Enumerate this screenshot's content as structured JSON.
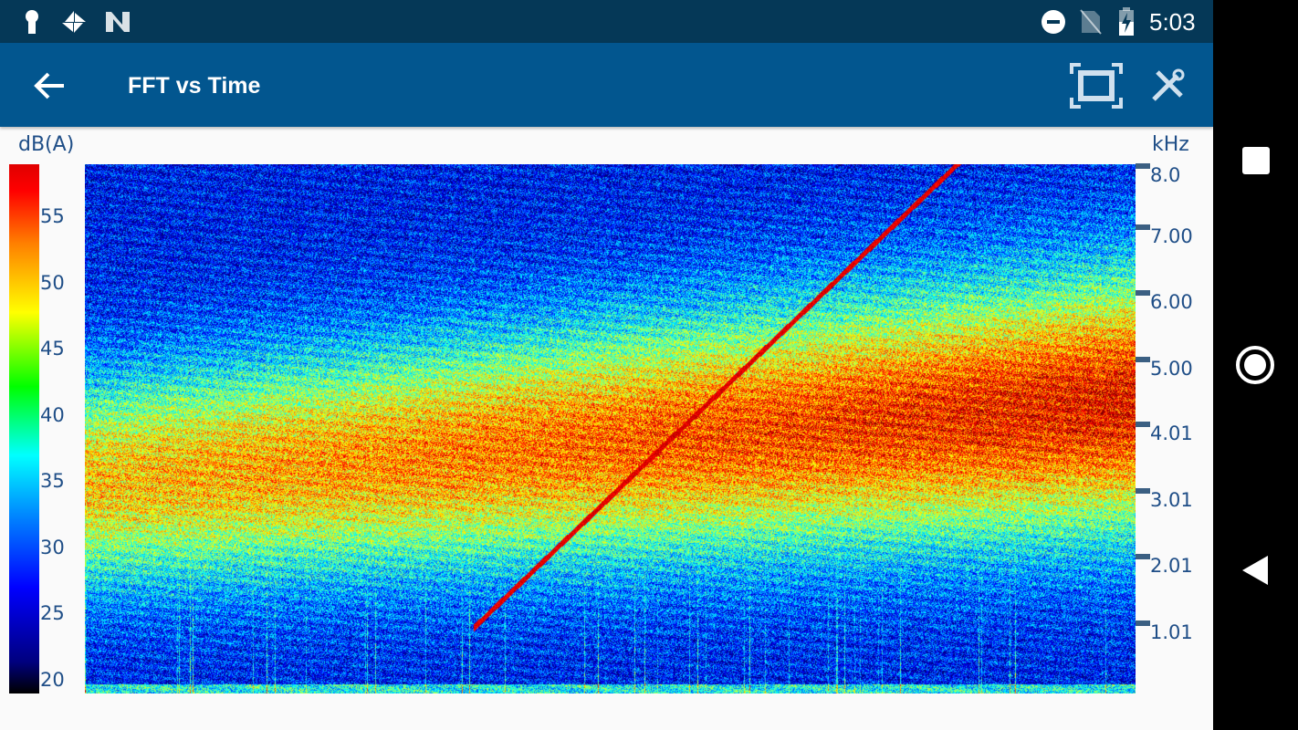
{
  "status_bar": {
    "time": "5:03",
    "icons": [
      "keyhole-icon",
      "pinwheel-icon",
      "n-icon",
      "do-not-disturb-icon",
      "no-sim-icon",
      "battery-charging-icon"
    ]
  },
  "app_bar": {
    "title": "FFT vs Time",
    "back_icon": "arrow-left-icon",
    "fullscreen_icon": "fullscreen-icon",
    "settings_icon": "tools-icon"
  },
  "nav_bar": {
    "icons": [
      "recents-square-icon",
      "home-circle-icon",
      "back-triangle-icon"
    ]
  },
  "chart_data": {
    "type": "heatmap",
    "title": "",
    "colorbar": {
      "label": "dB(A)",
      "ticks": [
        "20",
        "25",
        "30",
        "35",
        "40",
        "45",
        "50",
        "55"
      ],
      "range": [
        19,
        59
      ],
      "colormap": "jet"
    },
    "y_axis": {
      "label": "kHz",
      "ticks": [
        "8.0",
        "7.00",
        "6.00",
        "5.00",
        "4.01",
        "3.01",
        "2.01",
        "1.01"
      ],
      "tick_values": [
        8.0,
        7.0,
        6.0,
        5.0,
        4.01,
        3.01,
        2.01,
        1.01
      ],
      "range": [
        0,
        8.0
      ],
      "position": "right"
    },
    "x_axis": {
      "label": "",
      "ticks": []
    },
    "features": {
      "chirp": {
        "start_khz": 1.0,
        "end_khz": 8.0,
        "level_db": 55
      },
      "energy_band_khz": [
        2.5,
        6.0
      ],
      "peak_db": 55
    }
  }
}
